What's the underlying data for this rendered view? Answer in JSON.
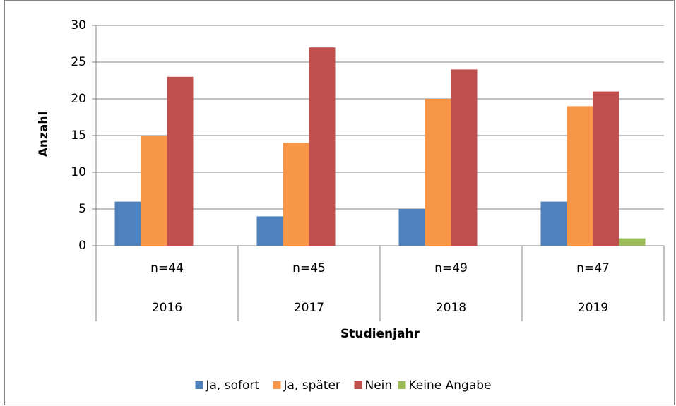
{
  "chart_data": {
    "type": "bar",
    "y_label": "Anzahl",
    "x_label": "Studienjahr",
    "categories": [
      "2016",
      "2017",
      "2018",
      "2019"
    ],
    "n_labels": [
      "n=44",
      "n=45",
      "n=49",
      "n=47"
    ],
    "series": [
      {
        "name": "Ja, sofort",
        "color": "#4f81bd",
        "values": [
          6,
          4,
          5,
          6
        ]
      },
      {
        "name": "Ja, später",
        "color": "#f79646",
        "values": [
          15,
          14,
          20,
          19
        ]
      },
      {
        "name": "Nein",
        "color": "#c0504d",
        "values": [
          23,
          27,
          24,
          21
        ]
      },
      {
        "name": "Keine Angabe",
        "color": "#9bbb59",
        "values": [
          0,
          0,
          0,
          1
        ]
      }
    ],
    "ylim": [
      0,
      30
    ],
    "yticks": [
      0,
      5,
      10,
      15,
      20,
      25,
      30
    ],
    "grid": true,
    "legend": "bottom"
  }
}
